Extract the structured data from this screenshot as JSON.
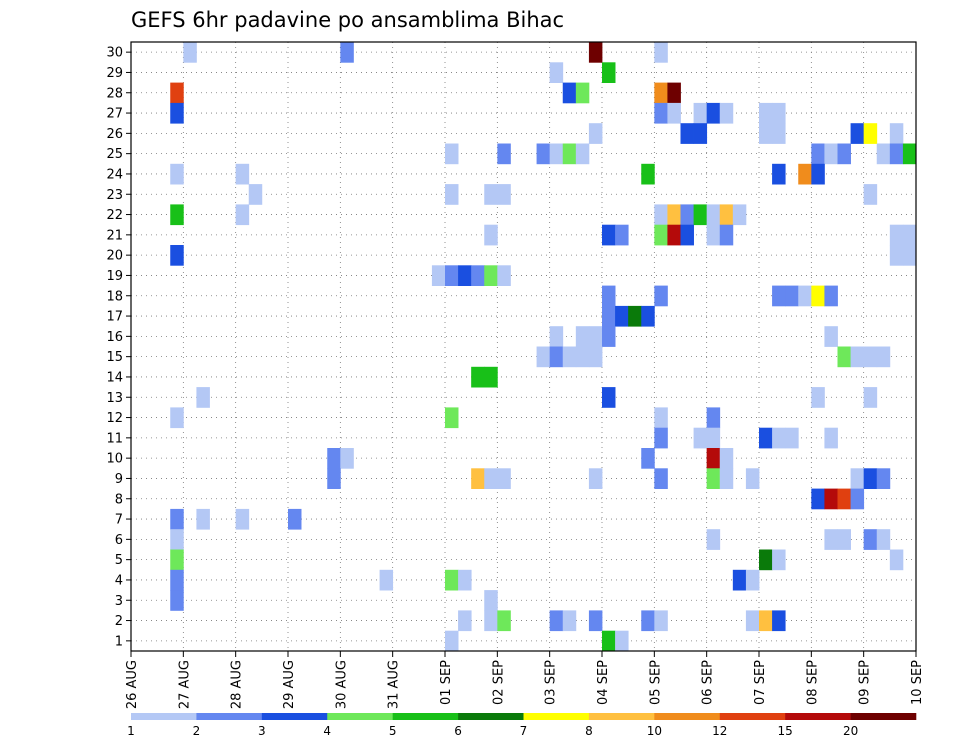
{
  "chart_data": {
    "type": "heatmap",
    "title": "GEFS 6hr padavine po ansamblima Bihac",
    "xlabel": "",
    "ylabel": "",
    "grid": true,
    "x_ticks": [
      "26 AUG",
      "27 AUG",
      "28 AUG",
      "29 AUG",
      "30 AUG",
      "31 AUG",
      "01 SEP",
      "02 SEP",
      "03 SEP",
      "04 SEP",
      "05 SEP",
      "06 SEP",
      "07 SEP",
      "08 SEP",
      "09 SEP",
      "10 SEP"
    ],
    "y_ticks": [
      1,
      2,
      3,
      4,
      5,
      6,
      7,
      8,
      9,
      10,
      11,
      12,
      13,
      14,
      15,
      16,
      17,
      18,
      19,
      20,
      21,
      22,
      23,
      24,
      25,
      26,
      27,
      28,
      29,
      30
    ],
    "x_range": [
      0,
      60
    ],
    "y_range": [
      0.5,
      30.5
    ],
    "time_step_hours": 6,
    "colorbar": {
      "labels": [
        "1",
        "2",
        "3",
        "4",
        "5",
        "6",
        "7",
        "8",
        "10",
        "12",
        "15",
        "20"
      ],
      "colors": [
        "#b4c8f5",
        "#6487f0",
        "#1a4fe0",
        "#6ee85a",
        "#18c018",
        "#0a7a0a",
        "#ffff00",
        "#ffc040",
        "#f08c1c",
        "#e04010",
        "#b40a0a",
        "#6e0000"
      ]
    },
    "cells": [
      [
        4,
        30,
        0
      ],
      [
        16,
        30,
        1
      ],
      [
        35,
        30,
        11
      ],
      [
        40,
        30,
        0
      ],
      [
        36,
        29,
        4
      ],
      [
        32,
        29,
        0
      ],
      [
        3,
        28,
        9
      ],
      [
        33,
        28,
        2
      ],
      [
        34,
        28,
        3
      ],
      [
        40,
        28,
        8
      ],
      [
        41,
        28,
        11
      ],
      [
        3,
        27,
        2
      ],
      [
        40,
        27,
        1
      ],
      [
        41,
        27,
        0
      ],
      [
        43,
        27,
        0
      ],
      [
        44,
        27,
        2
      ],
      [
        45,
        27,
        0
      ],
      [
        48,
        27,
        0
      ],
      [
        49,
        27,
        0
      ],
      [
        35,
        26,
        0
      ],
      [
        42,
        26,
        2
      ],
      [
        43,
        26,
        2
      ],
      [
        48,
        26,
        0
      ],
      [
        49,
        26,
        0
      ],
      [
        55,
        26,
        2
      ],
      [
        56,
        26,
        6
      ],
      [
        58,
        26,
        0
      ],
      [
        24,
        25,
        0
      ],
      [
        28,
        25,
        1
      ],
      [
        31,
        25,
        1
      ],
      [
        32,
        25,
        0
      ],
      [
        33,
        25,
        3
      ],
      [
        34,
        25,
        0
      ],
      [
        52,
        25,
        1
      ],
      [
        53,
        25,
        0
      ],
      [
        54,
        25,
        1
      ],
      [
        57,
        25,
        0
      ],
      [
        58,
        25,
        1
      ],
      [
        59,
        25,
        4
      ],
      [
        3,
        24,
        0
      ],
      [
        8,
        24,
        0
      ],
      [
        39,
        24,
        4
      ],
      [
        49,
        24,
        2
      ],
      [
        51,
        24,
        8
      ],
      [
        52,
        24,
        2
      ],
      [
        9,
        23,
        0
      ],
      [
        24,
        23,
        0
      ],
      [
        27,
        23,
        0
      ],
      [
        28,
        23,
        0
      ],
      [
        56,
        23,
        0
      ],
      [
        3,
        22,
        4
      ],
      [
        8,
        22,
        0
      ],
      [
        40,
        22,
        0
      ],
      [
        41,
        22,
        7
      ],
      [
        42,
        22,
        1
      ],
      [
        43,
        22,
        4
      ],
      [
        44,
        22,
        0
      ],
      [
        45,
        22,
        7
      ],
      [
        46,
        22,
        0
      ],
      [
        27,
        21,
        0
      ],
      [
        36,
        21,
        2
      ],
      [
        37,
        21,
        1
      ],
      [
        40,
        21,
        3
      ],
      [
        41,
        21,
        10
      ],
      [
        42,
        21,
        2
      ],
      [
        44,
        21,
        0
      ],
      [
        45,
        21,
        1
      ],
      [
        58,
        21,
        0
      ],
      [
        59,
        21,
        0
      ],
      [
        3,
        20,
        2
      ],
      [
        58,
        20,
        0
      ],
      [
        59,
        20,
        0
      ],
      [
        23,
        19,
        0
      ],
      [
        24,
        19,
        1
      ],
      [
        25,
        19,
        2
      ],
      [
        26,
        19,
        1
      ],
      [
        27,
        19,
        3
      ],
      [
        28,
        19,
        0
      ],
      [
        36,
        18,
        1
      ],
      [
        40,
        18,
        1
      ],
      [
        49,
        18,
        1
      ],
      [
        50,
        18,
        1
      ],
      [
        51,
        18,
        0
      ],
      [
        52,
        18,
        6
      ],
      [
        53,
        18,
        1
      ],
      [
        36,
        17,
        1
      ],
      [
        37,
        17,
        2
      ],
      [
        38,
        17,
        5
      ],
      [
        39,
        17,
        2
      ],
      [
        32,
        16,
        0
      ],
      [
        34,
        16,
        0
      ],
      [
        35,
        16,
        0
      ],
      [
        36,
        16,
        1
      ],
      [
        53,
        16,
        0
      ],
      [
        31,
        15,
        0
      ],
      [
        32,
        15,
        1
      ],
      [
        33,
        15,
        0
      ],
      [
        34,
        15,
        0
      ],
      [
        35,
        15,
        0
      ],
      [
        54,
        15,
        3
      ],
      [
        55,
        15,
        0
      ],
      [
        56,
        15,
        0
      ],
      [
        57,
        15,
        0
      ],
      [
        26,
        14,
        4
      ],
      [
        27,
        14,
        4
      ],
      [
        5,
        13,
        0
      ],
      [
        36,
        13,
        2
      ],
      [
        52,
        13,
        0
      ],
      [
        56,
        13,
        0
      ],
      [
        3,
        12,
        0
      ],
      [
        24,
        12,
        3
      ],
      [
        40,
        12,
        0
      ],
      [
        44,
        12,
        1
      ],
      [
        40,
        11,
        1
      ],
      [
        43,
        11,
        0
      ],
      [
        44,
        11,
        0
      ],
      [
        48,
        11,
        2
      ],
      [
        49,
        11,
        0
      ],
      [
        50,
        11,
        0
      ],
      [
        53,
        11,
        0
      ],
      [
        15,
        10,
        1
      ],
      [
        16,
        10,
        0
      ],
      [
        39,
        10,
        1
      ],
      [
        44,
        10,
        10
      ],
      [
        45,
        10,
        0
      ],
      [
        15,
        9,
        1
      ],
      [
        26,
        9,
        7
      ],
      [
        27,
        9,
        0
      ],
      [
        28,
        9,
        0
      ],
      [
        35,
        9,
        0
      ],
      [
        40,
        9,
        1
      ],
      [
        44,
        9,
        3
      ],
      [
        45,
        9,
        0
      ],
      [
        47,
        9,
        0
      ],
      [
        55,
        9,
        0
      ],
      [
        56,
        9,
        2
      ],
      [
        57,
        9,
        1
      ],
      [
        52,
        8,
        2
      ],
      [
        53,
        8,
        10
      ],
      [
        54,
        8,
        9
      ],
      [
        55,
        8,
        1
      ],
      [
        3,
        7,
        1
      ],
      [
        5,
        7,
        0
      ],
      [
        8,
        7,
        0
      ],
      [
        12,
        7,
        1
      ],
      [
        3,
        6,
        0
      ],
      [
        44,
        6,
        0
      ],
      [
        53,
        6,
        0
      ],
      [
        54,
        6,
        0
      ],
      [
        56,
        6,
        1
      ],
      [
        57,
        6,
        0
      ],
      [
        3,
        5,
        3
      ],
      [
        48,
        5,
        5
      ],
      [
        49,
        5,
        0
      ],
      [
        58,
        5,
        0
      ],
      [
        3,
        4,
        1
      ],
      [
        19,
        4,
        0
      ],
      [
        24,
        4,
        3
      ],
      [
        25,
        4,
        0
      ],
      [
        46,
        4,
        2
      ],
      [
        47,
        4,
        0
      ],
      [
        3,
        3,
        1
      ],
      [
        27,
        3,
        0
      ],
      [
        25,
        2,
        0
      ],
      [
        27,
        2,
        0
      ],
      [
        28,
        2,
        3
      ],
      [
        32,
        2,
        1
      ],
      [
        33,
        2,
        0
      ],
      [
        35,
        2,
        1
      ],
      [
        39,
        2,
        1
      ],
      [
        40,
        2,
        0
      ],
      [
        47,
        2,
        0
      ],
      [
        48,
        2,
        7
      ],
      [
        49,
        2,
        2
      ],
      [
        24,
        1,
        0
      ],
      [
        36,
        1,
        4
      ],
      [
        37,
        1,
        0
      ]
    ]
  }
}
